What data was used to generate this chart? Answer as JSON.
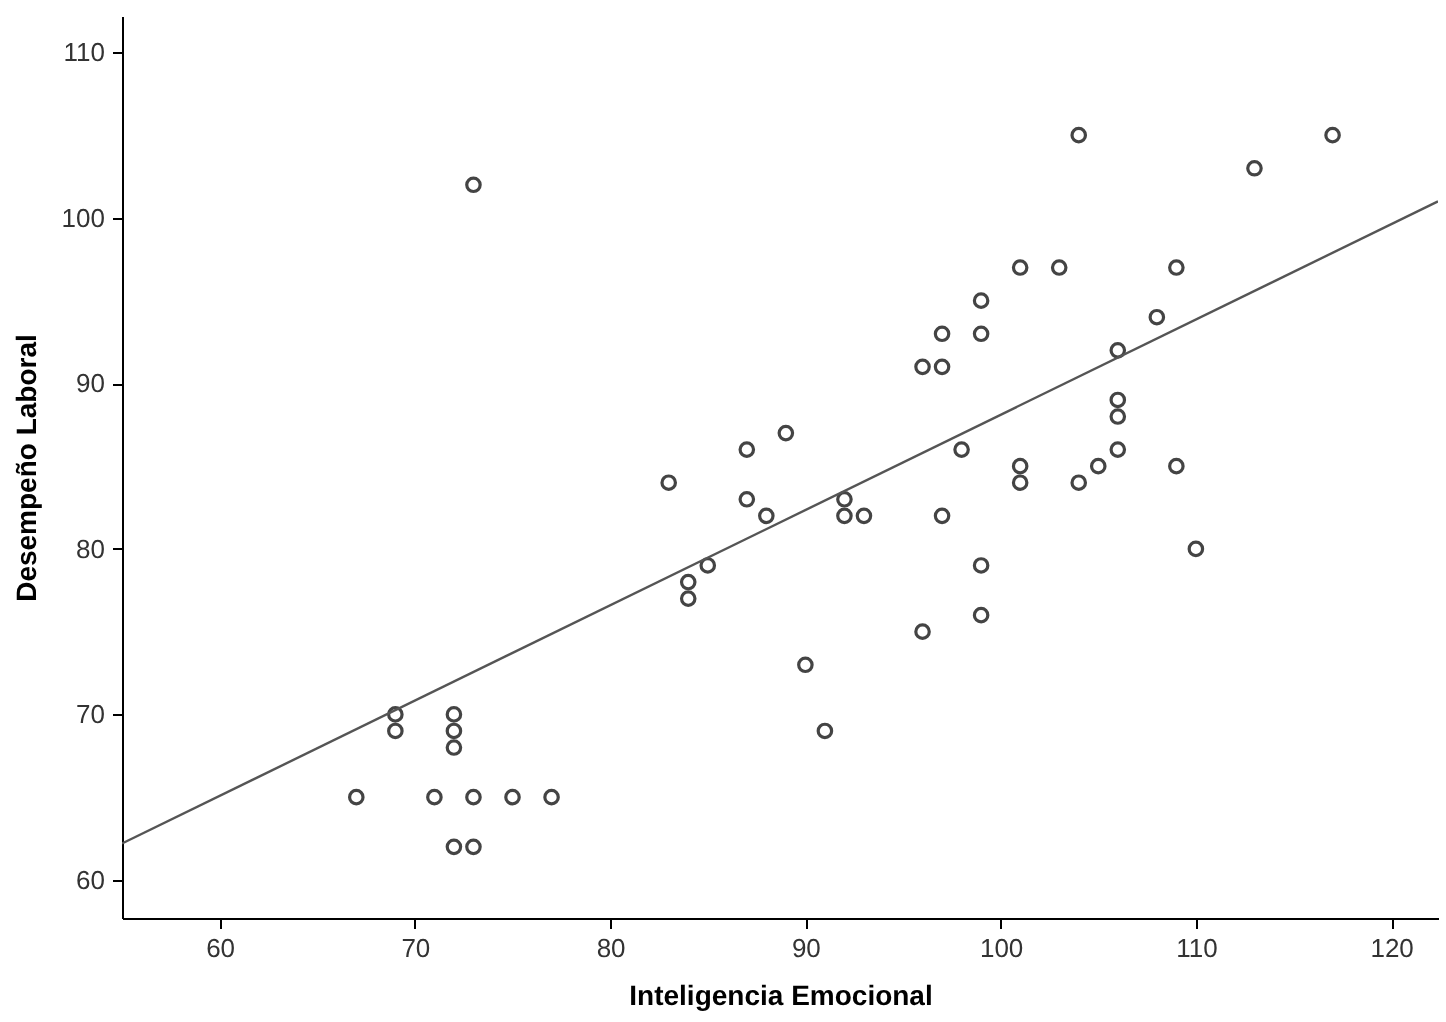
{
  "chart_data": {
    "type": "scatter",
    "xlabel": "Inteligencia Emocional",
    "ylabel": "Desempeño Laboral",
    "xlim": [
      55,
      122.4
    ],
    "ylim": [
      57.7,
      112.2
    ],
    "xticks": [
      60,
      70,
      80,
      90,
      100,
      110,
      120
    ],
    "yticks": [
      60,
      70,
      80,
      90,
      100,
      110
    ],
    "grid": false,
    "legend": false,
    "series": [
      {
        "marker": "circle",
        "color": "#444444",
        "x": [
          67,
          69,
          69,
          71,
          72,
          72,
          72,
          72,
          73,
          73,
          75,
          77,
          73,
          83,
          84,
          84,
          85,
          87,
          87,
          88,
          89,
          90,
          91,
          92,
          92,
          93,
          96,
          96,
          97,
          97,
          97,
          98,
          99,
          99,
          99,
          99,
          101,
          101,
          101,
          103,
          104,
          104,
          105,
          106,
          106,
          106,
          106,
          108,
          109,
          109,
          110,
          113,
          117
        ],
        "values": [
          65,
          70,
          69,
          65,
          70,
          69,
          68,
          62,
          62,
          65,
          65,
          65,
          102,
          84,
          78,
          77,
          79,
          86,
          83,
          82,
          87,
          73,
          69,
          83,
          82,
          82,
          91,
          75,
          91,
          93,
          82,
          86,
          95,
          93,
          79,
          76,
          97,
          85,
          84,
          97,
          105,
          84,
          85,
          92,
          89,
          88,
          86,
          94,
          97,
          85,
          80,
          103,
          105
        ]
      },
      {
        "type": "line",
        "color": "#555555",
        "line_style": "solid",
        "x": [
          55,
          122.4
        ],
        "values": [
          62.2,
          101
        ]
      }
    ]
  }
}
